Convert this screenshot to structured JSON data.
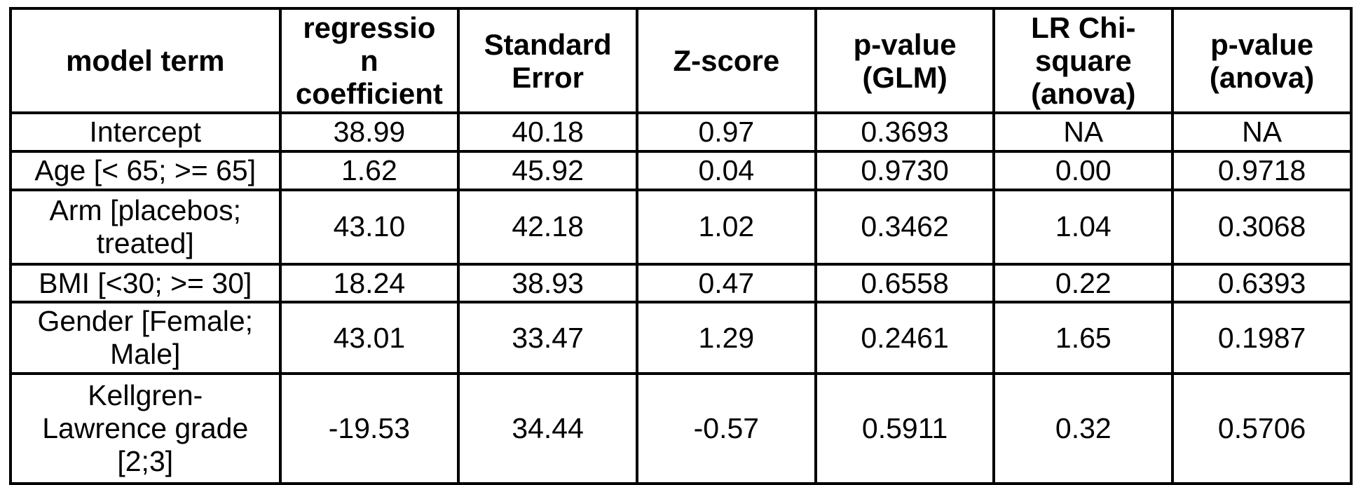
{
  "table": {
    "headers": [
      "model term",
      "regressio\nn\ncoefficient",
      "Standard\nError",
      "Z-score",
      "p-value\n(GLM)",
      "LR Chi-\nsquare\n(anova)",
      "p-value\n(anova)"
    ],
    "rows": [
      [
        "Intercept",
        "38.99",
        "40.18",
        "0.97",
        "0.3693",
        "NA",
        "NA"
      ],
      [
        "Age [< 65; >= 65]",
        "1.62",
        "45.92",
        "0.04",
        "0.9730",
        "0.00",
        "0.9718"
      ],
      [
        "Arm [placebos;\ntreated]",
        "43.10",
        "42.18",
        "1.02",
        "0.3462",
        "1.04",
        "0.3068"
      ],
      [
        "BMI [<30; >= 30]",
        "18.24",
        "38.93",
        "0.47",
        "0.6558",
        "0.22",
        "0.6393"
      ],
      [
        "Gender [Female;\nMale]",
        "43.01",
        "33.47",
        "1.29",
        "0.2461",
        "1.65",
        "0.1987"
      ],
      [
        "Kellgren-\nLawrence grade\n[2;3]",
        "-19.53",
        "34.44",
        "-0.57",
        "0.5911",
        "0.32",
        "0.5706"
      ]
    ],
    "colors": {
      "border": "#000000",
      "text": "#000000",
      "background": "#ffffff"
    }
  },
  "chart_data": {
    "type": "table",
    "title": "",
    "columns": [
      "model term",
      "regression coefficient",
      "Standard Error",
      "Z-score",
      "p-value (GLM)",
      "LR Chi-square (anova)",
      "p-value (anova)"
    ],
    "rows": [
      [
        "Intercept",
        38.99,
        40.18,
        0.97,
        0.3693,
        "NA",
        "NA"
      ],
      [
        "Age [< 65; >= 65]",
        1.62,
        45.92,
        0.04,
        0.973,
        0.0,
        0.9718
      ],
      [
        "Arm [placebos; treated]",
        43.1,
        42.18,
        1.02,
        0.3462,
        1.04,
        0.3068
      ],
      [
        "BMI [<30; >= 30]",
        18.24,
        38.93,
        0.47,
        0.6558,
        0.22,
        0.6393
      ],
      [
        "Gender [Female; Male]",
        43.01,
        33.47,
        1.29,
        0.2461,
        1.65,
        0.1987
      ],
      [
        "Kellgren-Lawrence grade [2;3]",
        -19.53,
        34.44,
        -0.57,
        0.5911,
        0.32,
        0.5706
      ]
    ]
  }
}
